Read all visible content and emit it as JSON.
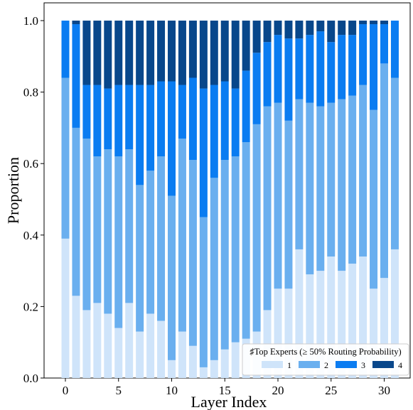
{
  "chart_data": {
    "type": "bar",
    "stacked": true,
    "xlabel": "Layer Index",
    "ylabel": "Proportion",
    "ylim": [
      0.0,
      1.05
    ],
    "yticks": [
      "0.0",
      "0.2",
      "0.4",
      "0.6",
      "0.8",
      "1.0"
    ],
    "xticks": [
      "0",
      "5",
      "10",
      "15",
      "20",
      "25",
      "30"
    ],
    "categories": [
      0,
      1,
      2,
      3,
      4,
      5,
      6,
      7,
      8,
      9,
      10,
      11,
      12,
      13,
      14,
      15,
      16,
      17,
      18,
      19,
      20,
      21,
      22,
      23,
      24,
      25,
      26,
      27,
      28,
      29,
      30,
      31
    ],
    "grid": false,
    "legend": {
      "title": "♯Top Experts (≥ 50% Routing Probability)",
      "placement": "bottom-right"
    },
    "series": [
      {
        "name": "1",
        "color": "#cfe4fa",
        "values": [
          0.39,
          0.23,
          0.19,
          0.21,
          0.18,
          0.14,
          0.21,
          0.13,
          0.18,
          0.16,
          0.05,
          0.13,
          0.09,
          0.03,
          0.05,
          0.08,
          0.1,
          0.11,
          0.13,
          0.19,
          0.25,
          0.25,
          0.36,
          0.29,
          0.3,
          0.34,
          0.3,
          0.32,
          0.34,
          0.25,
          0.28,
          0.36
        ]
      },
      {
        "name": "2",
        "color": "#6aafef",
        "values": [
          0.45,
          0.47,
          0.48,
          0.41,
          0.46,
          0.48,
          0.43,
          0.41,
          0.4,
          0.46,
          0.46,
          0.54,
          0.52,
          0.42,
          0.51,
          0.53,
          0.52,
          0.55,
          0.58,
          0.57,
          0.52,
          0.47,
          0.42,
          0.48,
          0.46,
          0.43,
          0.48,
          0.47,
          0.48,
          0.5,
          0.6,
          0.48
        ]
      },
      {
        "name": "3",
        "color": "#0a7cf1",
        "values": [
          0.16,
          0.29,
          0.15,
          0.2,
          0.17,
          0.2,
          0.18,
          0.28,
          0.24,
          0.21,
          0.32,
          0.15,
          0.23,
          0.36,
          0.26,
          0.22,
          0.19,
          0.2,
          0.2,
          0.18,
          0.19,
          0.23,
          0.17,
          0.19,
          0.21,
          0.17,
          0.18,
          0.17,
          0.17,
          0.24,
          0.11,
          0.16
        ]
      },
      {
        "name": "4",
        "color": "#08478b",
        "values": [
          0.0,
          0.01,
          0.18,
          0.18,
          0.19,
          0.18,
          0.18,
          0.18,
          0.18,
          0.17,
          0.17,
          0.18,
          0.16,
          0.19,
          0.18,
          0.17,
          0.19,
          0.14,
          0.09,
          0.06,
          0.04,
          0.05,
          0.05,
          0.04,
          0.03,
          0.06,
          0.04,
          0.04,
          0.01,
          0.01,
          0.01,
          0.0
        ]
      }
    ]
  }
}
